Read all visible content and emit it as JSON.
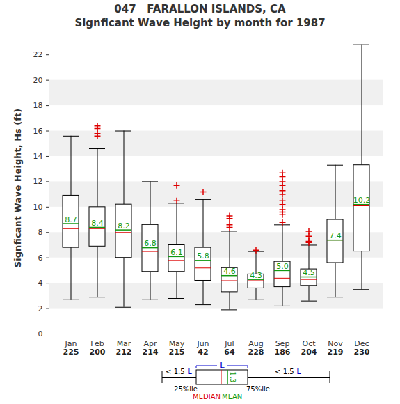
{
  "chart_data": {
    "type": "box",
    "title": "047   FARALLON ISLANDS, CA",
    "subtitle": "Signficant Wave Height by month for 1987",
    "y_label": "Signficant Wave Height, Hs (ft)",
    "categories": [
      "Jan",
      "Feb",
      "Mar",
      "Apr",
      "May",
      "Jun",
      "Jul",
      "Aug",
      "Sep",
      "Oct",
      "Nov",
      "Dec"
    ],
    "counts": [
      225,
      200,
      212,
      214,
      215,
      42,
      64,
      228,
      186,
      204,
      219,
      230
    ],
    "whisker_low": [
      2.7,
      2.9,
      2.1,
      2.7,
      2.8,
      2.3,
      1.9,
      2.7,
      2.2,
      2.6,
      2.9,
      3.5
    ],
    "q1": [
      6.8,
      6.9,
      6.0,
      4.9,
      4.9,
      4.2,
      3.3,
      3.6,
      3.7,
      3.8,
      5.6,
      6.5
    ],
    "median": [
      8.3,
      8.3,
      8.0,
      6.5,
      5.8,
      5.2,
      4.2,
      4.2,
      4.4,
      4.3,
      7.4,
      10.1
    ],
    "mean": [
      8.7,
      8.4,
      8.2,
      6.8,
      6.1,
      5.8,
      4.6,
      4.3,
      5.0,
      4.5,
      7.4,
      10.2
    ],
    "mean_labels": [
      "8.7",
      "8.4",
      "8.2",
      "6.8",
      "6.1",
      "5.8",
      "4.6",
      "4.3",
      "5.0",
      "4.5",
      "7.4",
      "10.2"
    ],
    "q3": [
      10.9,
      10.0,
      10.2,
      8.6,
      7.0,
      6.8,
      5.2,
      4.7,
      5.7,
      5.1,
      9.0,
      13.3
    ],
    "whisker_high": [
      15.6,
      14.6,
      16.0,
      12.0,
      10.3,
      10.6,
      8.1,
      6.5,
      8.6,
      7.0,
      13.3,
      22.8
    ],
    "outliers": [
      [],
      [
        16.4,
        16.2,
        15.8,
        15.6
      ],
      [],
      [],
      [
        11.7,
        10.5
      ],
      [
        11.2
      ],
      [
        9.3,
        9.1,
        8.6,
        8.4
      ],
      [
        6.6
      ],
      [
        12.7,
        12.4,
        12.0,
        11.7,
        11.3,
        11.0,
        10.5,
        10.2,
        9.8,
        9.6,
        9.4,
        8.8
      ],
      [
        8.1,
        7.7,
        7.3,
        7.2
      ],
      [],
      []
    ],
    "ylim": [
      0,
      23
    ],
    "yticks": [
      0,
      2,
      4,
      6,
      8,
      10,
      12,
      14,
      16,
      18,
      20,
      22
    ],
    "grid": true,
    "data_labels": true,
    "color": "#000000",
    "key": {
      "l": "L",
      "whisker_prefix": "< 1.5",
      "q1": "25%ile",
      "q3": "75%ile",
      "median": "MEDIAN",
      "mean": "MEAN",
      "mean_value": 1.3
    }
  }
}
